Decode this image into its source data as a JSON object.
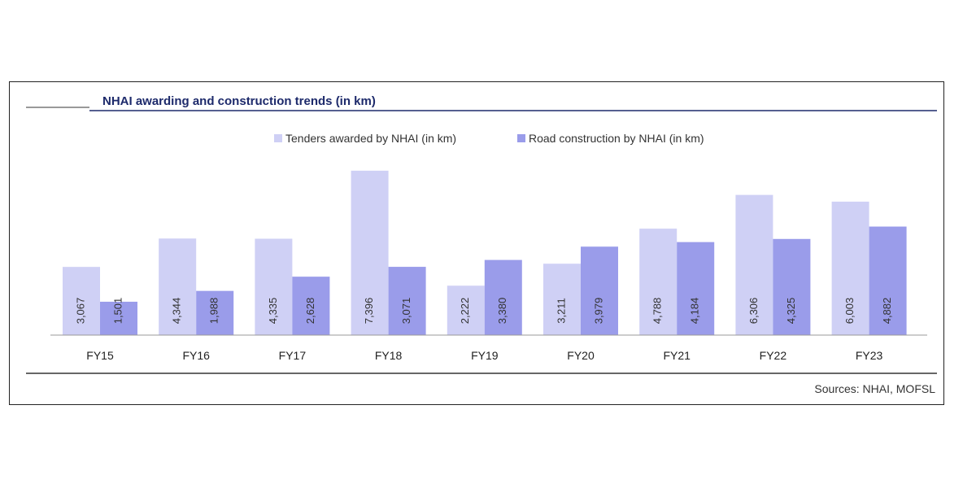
{
  "chart_data": {
    "type": "bar",
    "title": "NHAI awarding and construction trends (in km)",
    "categories": [
      "FY15",
      "FY16",
      "FY17",
      "FY18",
      "FY19",
      "FY20",
      "FY21",
      "FY22",
      "FY23"
    ],
    "series": [
      {
        "name": "Tenders awarded by NHAI (in km)",
        "values": [
          3067,
          4344,
          4335,
          7396,
          2222,
          3211,
          4788,
          6306,
          6003
        ],
        "labels": [
          "3,067",
          "4,344",
          "4,335",
          "7,396",
          "2,222",
          "3,211",
          "4,788",
          "6,306",
          "6,003"
        ]
      },
      {
        "name": "Road construction by NHAI (in km)",
        "values": [
          1501,
          1988,
          2628,
          3071,
          3380,
          3979,
          4184,
          4325,
          4882
        ],
        "labels": [
          "1,501",
          "1,988",
          "2,628",
          "3,071",
          "3,380",
          "3,979",
          "4,184",
          "4,325",
          "4,882"
        ]
      }
    ],
    "ylim": [
      0,
      7500
    ],
    "legend_position": "top",
    "grid": false,
    "source": "Sources: NHAI, MOFSL"
  },
  "colors": {
    "series_1": "#cfd0f5",
    "series_2": "#9a9cea",
    "title": "#1d2a6b",
    "rule": "#1d2a6b",
    "axis": "#999999"
  }
}
